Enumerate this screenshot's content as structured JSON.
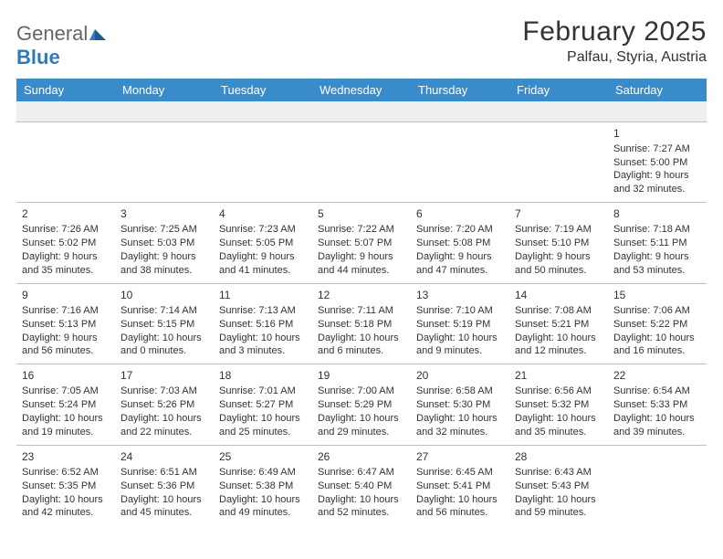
{
  "logo": {
    "textGray": "General",
    "textBlue": "Blue"
  },
  "title": "February 2025",
  "location": "Palfau, Styria, Austria",
  "colors": {
    "headerBg": "#3a8bca",
    "headerText": "#ffffff",
    "blankRowBg": "#efefef",
    "border": "#bfbfbf",
    "logoBlue": "#2f7abf",
    "logoGray": "#666666",
    "text": "#333333",
    "pageBg": "#ffffff"
  },
  "layout": {
    "pageWidth": 792,
    "pageHeight": 612,
    "columns": 7,
    "dataFontSize": 11,
    "dayNumFontSize": 12,
    "headerFontSize": 13,
    "titleFontSize": 30,
    "locationFontSize": 16
  },
  "weekdays": [
    "Sunday",
    "Monday",
    "Tuesday",
    "Wednesday",
    "Thursday",
    "Friday",
    "Saturday"
  ],
  "weeks": [
    [
      null,
      null,
      null,
      null,
      null,
      null,
      {
        "n": "1",
        "sunrise": "Sunrise: 7:27 AM",
        "sunset": "Sunset: 5:00 PM",
        "day1": "Daylight: 9 hours",
        "day2": "and 32 minutes."
      }
    ],
    [
      {
        "n": "2",
        "sunrise": "Sunrise: 7:26 AM",
        "sunset": "Sunset: 5:02 PM",
        "day1": "Daylight: 9 hours",
        "day2": "and 35 minutes."
      },
      {
        "n": "3",
        "sunrise": "Sunrise: 7:25 AM",
        "sunset": "Sunset: 5:03 PM",
        "day1": "Daylight: 9 hours",
        "day2": "and 38 minutes."
      },
      {
        "n": "4",
        "sunrise": "Sunrise: 7:23 AM",
        "sunset": "Sunset: 5:05 PM",
        "day1": "Daylight: 9 hours",
        "day2": "and 41 minutes."
      },
      {
        "n": "5",
        "sunrise": "Sunrise: 7:22 AM",
        "sunset": "Sunset: 5:07 PM",
        "day1": "Daylight: 9 hours",
        "day2": "and 44 minutes."
      },
      {
        "n": "6",
        "sunrise": "Sunrise: 7:20 AM",
        "sunset": "Sunset: 5:08 PM",
        "day1": "Daylight: 9 hours",
        "day2": "and 47 minutes."
      },
      {
        "n": "7",
        "sunrise": "Sunrise: 7:19 AM",
        "sunset": "Sunset: 5:10 PM",
        "day1": "Daylight: 9 hours",
        "day2": "and 50 minutes."
      },
      {
        "n": "8",
        "sunrise": "Sunrise: 7:18 AM",
        "sunset": "Sunset: 5:11 PM",
        "day1": "Daylight: 9 hours",
        "day2": "and 53 minutes."
      }
    ],
    [
      {
        "n": "9",
        "sunrise": "Sunrise: 7:16 AM",
        "sunset": "Sunset: 5:13 PM",
        "day1": "Daylight: 9 hours",
        "day2": "and 56 minutes."
      },
      {
        "n": "10",
        "sunrise": "Sunrise: 7:14 AM",
        "sunset": "Sunset: 5:15 PM",
        "day1": "Daylight: 10 hours",
        "day2": "and 0 minutes."
      },
      {
        "n": "11",
        "sunrise": "Sunrise: 7:13 AM",
        "sunset": "Sunset: 5:16 PM",
        "day1": "Daylight: 10 hours",
        "day2": "and 3 minutes."
      },
      {
        "n": "12",
        "sunrise": "Sunrise: 7:11 AM",
        "sunset": "Sunset: 5:18 PM",
        "day1": "Daylight: 10 hours",
        "day2": "and 6 minutes."
      },
      {
        "n": "13",
        "sunrise": "Sunrise: 7:10 AM",
        "sunset": "Sunset: 5:19 PM",
        "day1": "Daylight: 10 hours",
        "day2": "and 9 minutes."
      },
      {
        "n": "14",
        "sunrise": "Sunrise: 7:08 AM",
        "sunset": "Sunset: 5:21 PM",
        "day1": "Daylight: 10 hours",
        "day2": "and 12 minutes."
      },
      {
        "n": "15",
        "sunrise": "Sunrise: 7:06 AM",
        "sunset": "Sunset: 5:22 PM",
        "day1": "Daylight: 10 hours",
        "day2": "and 16 minutes."
      }
    ],
    [
      {
        "n": "16",
        "sunrise": "Sunrise: 7:05 AM",
        "sunset": "Sunset: 5:24 PM",
        "day1": "Daylight: 10 hours",
        "day2": "and 19 minutes."
      },
      {
        "n": "17",
        "sunrise": "Sunrise: 7:03 AM",
        "sunset": "Sunset: 5:26 PM",
        "day1": "Daylight: 10 hours",
        "day2": "and 22 minutes."
      },
      {
        "n": "18",
        "sunrise": "Sunrise: 7:01 AM",
        "sunset": "Sunset: 5:27 PM",
        "day1": "Daylight: 10 hours",
        "day2": "and 25 minutes."
      },
      {
        "n": "19",
        "sunrise": "Sunrise: 7:00 AM",
        "sunset": "Sunset: 5:29 PM",
        "day1": "Daylight: 10 hours",
        "day2": "and 29 minutes."
      },
      {
        "n": "20",
        "sunrise": "Sunrise: 6:58 AM",
        "sunset": "Sunset: 5:30 PM",
        "day1": "Daylight: 10 hours",
        "day2": "and 32 minutes."
      },
      {
        "n": "21",
        "sunrise": "Sunrise: 6:56 AM",
        "sunset": "Sunset: 5:32 PM",
        "day1": "Daylight: 10 hours",
        "day2": "and 35 minutes."
      },
      {
        "n": "22",
        "sunrise": "Sunrise: 6:54 AM",
        "sunset": "Sunset: 5:33 PM",
        "day1": "Daylight: 10 hours",
        "day2": "and 39 minutes."
      }
    ],
    [
      {
        "n": "23",
        "sunrise": "Sunrise: 6:52 AM",
        "sunset": "Sunset: 5:35 PM",
        "day1": "Daylight: 10 hours",
        "day2": "and 42 minutes."
      },
      {
        "n": "24",
        "sunrise": "Sunrise: 6:51 AM",
        "sunset": "Sunset: 5:36 PM",
        "day1": "Daylight: 10 hours",
        "day2": "and 45 minutes."
      },
      {
        "n": "25",
        "sunrise": "Sunrise: 6:49 AM",
        "sunset": "Sunset: 5:38 PM",
        "day1": "Daylight: 10 hours",
        "day2": "and 49 minutes."
      },
      {
        "n": "26",
        "sunrise": "Sunrise: 6:47 AM",
        "sunset": "Sunset: 5:40 PM",
        "day1": "Daylight: 10 hours",
        "day2": "and 52 minutes."
      },
      {
        "n": "27",
        "sunrise": "Sunrise: 6:45 AM",
        "sunset": "Sunset: 5:41 PM",
        "day1": "Daylight: 10 hours",
        "day2": "and 56 minutes."
      },
      {
        "n": "28",
        "sunrise": "Sunrise: 6:43 AM",
        "sunset": "Sunset: 5:43 PM",
        "day1": "Daylight: 10 hours",
        "day2": "and 59 minutes."
      },
      null
    ]
  ]
}
